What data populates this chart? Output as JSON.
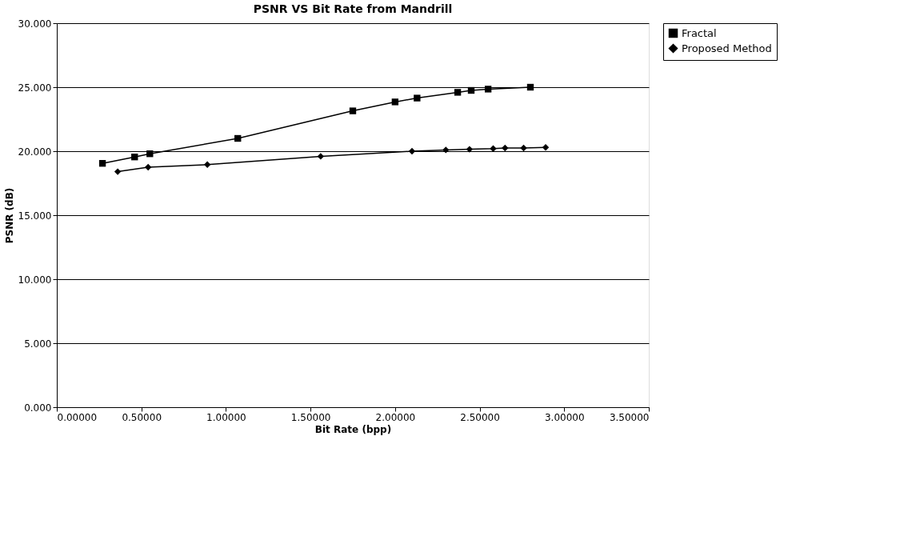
{
  "chart_data": {
    "type": "line",
    "title": "PSNR VS Bit Rate  from Mandrill",
    "xlabel": "Bit Rate (bpp)",
    "ylabel": "PSNR (dB)",
    "xlim": [
      0,
      3.5
    ],
    "xticks": [
      {
        "value": 0,
        "label": "0.00000"
      },
      {
        "value": 0.5,
        "label": "0.50000"
      },
      {
        "value": 1,
        "label": "1.00000"
      },
      {
        "value": 1.5,
        "label": "1.50000"
      },
      {
        "value": 2,
        "label": "2.00000"
      },
      {
        "value": 2.5,
        "label": "2.50000"
      },
      {
        "value": 3,
        "label": "3.00000"
      },
      {
        "value": 3.5,
        "label": "3.50000"
      }
    ],
    "ylim": [
      0,
      30
    ],
    "yticks": [
      {
        "value": 0,
        "label": "0.000"
      },
      {
        "value": 5,
        "label": "5.000"
      },
      {
        "value": 10,
        "label": "10.000"
      },
      {
        "value": 15,
        "label": "15.000"
      },
      {
        "value": 20,
        "label": "20.000"
      },
      {
        "value": 25,
        "label": "25.000"
      },
      {
        "value": 30,
        "label": "30.000"
      }
    ],
    "grid": "y",
    "legend": "right",
    "series": [
      {
        "name": "Fractal",
        "color": "#000000",
        "marker": "square",
        "x": [
          0.27,
          0.46,
          0.55,
          1.07,
          1.75,
          2.0,
          2.13,
          2.37,
          2.45,
          2.55,
          2.8
        ],
        "values": [
          19.05,
          19.55,
          19.8,
          21.0,
          23.15,
          23.85,
          24.15,
          24.6,
          24.75,
          24.85,
          25.0
        ]
      },
      {
        "name": "Proposed Method",
        "color": "#000000",
        "marker": "diamond",
        "x": [
          0.36,
          0.54,
          0.89,
          1.56,
          2.1,
          2.3,
          2.44,
          2.58,
          2.65,
          2.76,
          2.89
        ],
        "values": [
          18.4,
          18.75,
          18.95,
          19.6,
          20.0,
          20.1,
          20.15,
          20.2,
          20.25,
          20.25,
          20.3
        ]
      }
    ]
  }
}
